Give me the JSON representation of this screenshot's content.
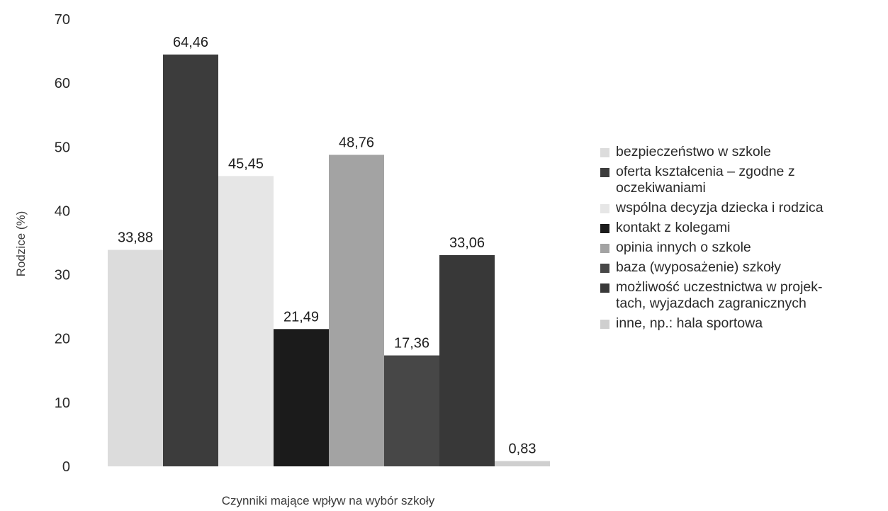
{
  "chart_data": {
    "type": "bar",
    "title": "",
    "xlabel": "Czynniki mające wpływ na wybór szkoły",
    "ylabel": "Rodzice (%)",
    "ylim": [
      0,
      70
    ],
    "yticks": [
      "0",
      "10",
      "20",
      "30",
      "40",
      "50",
      "60",
      "70"
    ],
    "grid": false,
    "legend_position": "right",
    "series": [
      {
        "name": "bezpieczeństwo w szkole",
        "value": 33.88,
        "label": "33,88",
        "color": "#dcdcdc"
      },
      {
        "name": "oferta kształcenia – zgodne z oczekiwaniami",
        "value": 64.46,
        "label": "64,46",
        "color": "#3c3c3c"
      },
      {
        "name": "wspólna decyzja dziecka i rodzica",
        "value": 45.45,
        "label": "45,45",
        "color": "#e6e6e6"
      },
      {
        "name": "kontakt z kolegami",
        "value": 21.49,
        "label": "21,49",
        "color": "#1b1b1b"
      },
      {
        "name": "opinia innych o szkole",
        "value": 48.76,
        "label": "48,76",
        "color": "#a3a3a3"
      },
      {
        "name": "baza (wyposażenie) szkoły",
        "value": 17.36,
        "label": "17,36",
        "color": "#474747"
      },
      {
        "name": "możliwość uczestnictwa w projektach, wyjazdach zagranicznych",
        "legend_lines": [
          "możliwość uczestnictwa w projek-",
          "tach, wyjazdach zagranicznych"
        ],
        "value": 33.06,
        "label": "33,06",
        "color": "#383838"
      },
      {
        "name": "inne, np.: hala sportowa",
        "value": 0.83,
        "label": "0,83",
        "color": "#cfcfcf"
      }
    ]
  }
}
